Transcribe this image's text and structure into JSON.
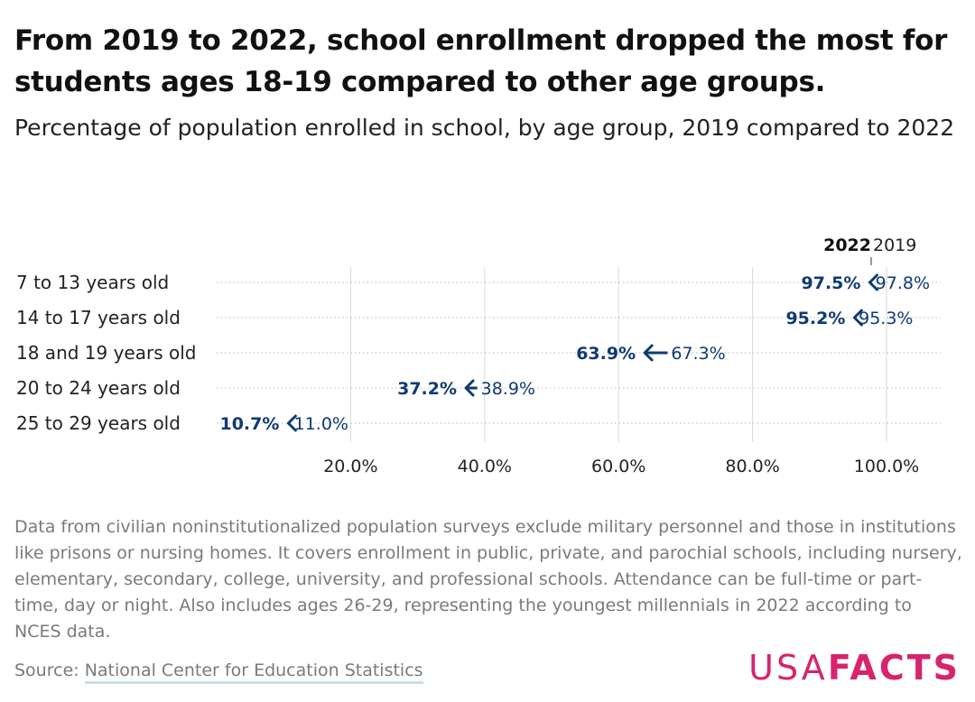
{
  "title": "From 2019 to 2022, school enrollment dropped the most for students ages 18-19 compared to other age groups.",
  "subtitle": "Percentage of population enrolled in school, by age group, 2019 compared to 2022",
  "note": "Data from civilian noninstitutionalized population surveys exclude military personnel and those in institutions like prisons or nursing homes. It covers enrollment in public, private, and parochial schools, including nursery, elementary, secondary, college, university, and professional schools. Attendance can be full-time or part-time, day or night. Also includes ages 26-29, representing the youngest millennials in 2022 according to NCES data.",
  "source": {
    "prefix": "Source: ",
    "link_text": "National Center for Education Statistics"
  },
  "logo": {
    "part1": "USA",
    "part2": "FACTS"
  },
  "colors": {
    "accent": "#0f3a73",
    "grid": "#d9d9d9",
    "logo": "#d6246e"
  },
  "chart_data": {
    "type": "arrow",
    "legend": [
      "2022",
      "2019"
    ],
    "categories": [
      "7 to 13 years old",
      "14 to 17 years old",
      "18 and 19 years old",
      "20 to 24 years old",
      "25 to 29 years old"
    ],
    "series": [
      {
        "name": "2022",
        "values": [
          97.5,
          95.2,
          63.9,
          37.2,
          10.7
        ],
        "labels": [
          "97.5%",
          "95.2%",
          "63.9%",
          "37.2%",
          "10.7%"
        ]
      },
      {
        "name": "2019",
        "values": [
          97.8,
          95.3,
          67.3,
          38.9,
          11.0
        ],
        "labels": [
          "97.8%",
          "95.3%",
          "67.3%",
          "38.9%",
          "11.0%"
        ]
      }
    ],
    "xticks": [
      20,
      40,
      60,
      80,
      100
    ],
    "xtick_labels": [
      "20.0%",
      "40.0%",
      "60.0%",
      "80.0%",
      "100.0%"
    ],
    "xlim": [
      0,
      108
    ],
    "grid": true
  }
}
